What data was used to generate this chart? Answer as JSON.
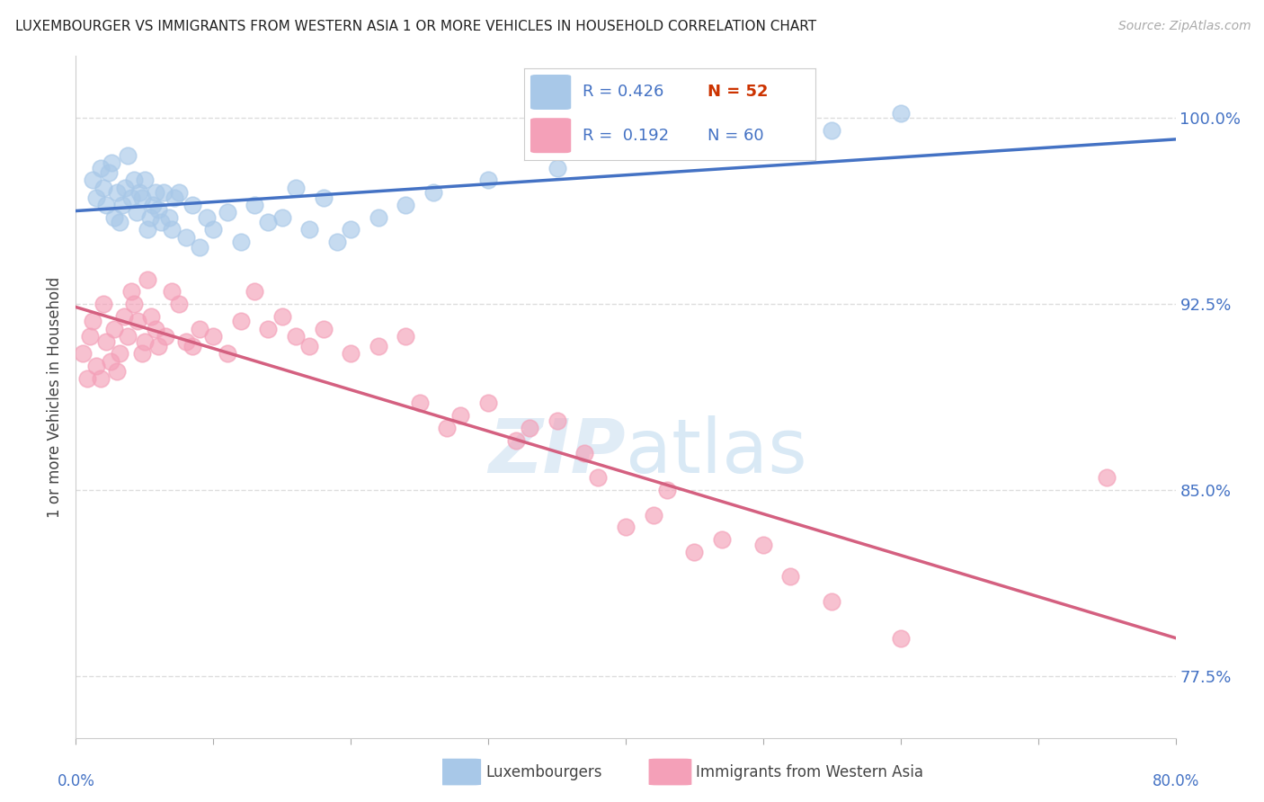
{
  "title": "LUXEMBOURGER VS IMMIGRANTS FROM WESTERN ASIA 1 OR MORE VEHICLES IN HOUSEHOLD CORRELATION CHART",
  "source": "Source: ZipAtlas.com",
  "ylabel": "1 or more Vehicles in Household",
  "yticks": [
    100.0,
    92.5,
    85.0,
    77.5
  ],
  "ytick_labels": [
    "100.0%",
    "92.5%",
    "85.0%",
    "77.5%"
  ],
  "legend_label_blue": "Luxembourgers",
  "legend_label_pink": "Immigrants from Western Asia",
  "blue_color": "#a8c8e8",
  "blue_line_color": "#4472c4",
  "pink_color": "#f4a0b8",
  "pink_line_color": "#d46080",
  "blue_r": 0.426,
  "blue_n": 52,
  "pink_r": 0.192,
  "pink_n": 60,
  "xmin": 0.0,
  "xmax": 80.0,
  "ymin": 75.0,
  "ymax": 102.5,
  "background_color": "#ffffff",
  "grid_color": "#dddddd",
  "title_color": "#222222",
  "axis_label_color": "#444444",
  "tick_color": "#4472c4",
  "source_color": "#aaaaaa",
  "blue_x": [
    1.2,
    1.5,
    1.8,
    2.0,
    2.2,
    2.4,
    2.6,
    2.8,
    3.0,
    3.2,
    3.4,
    3.6,
    3.8,
    4.0,
    4.2,
    4.4,
    4.6,
    4.8,
    5.0,
    5.2,
    5.4,
    5.6,
    5.8,
    6.0,
    6.2,
    6.4,
    6.8,
    7.0,
    7.2,
    7.5,
    8.0,
    8.5,
    9.0,
    9.5,
    10.0,
    11.0,
    12.0,
    13.0,
    14.0,
    15.0,
    16.0,
    17.0,
    18.0,
    19.0,
    20.0,
    22.0,
    24.0,
    26.0,
    30.0,
    35.0,
    55.0,
    60.0
  ],
  "blue_y": [
    97.5,
    96.8,
    98.0,
    97.2,
    96.5,
    97.8,
    98.2,
    96.0,
    97.0,
    95.8,
    96.5,
    97.2,
    98.5,
    96.8,
    97.5,
    96.2,
    97.0,
    96.8,
    97.5,
    95.5,
    96.0,
    96.5,
    97.0,
    96.3,
    95.8,
    97.0,
    96.0,
    95.5,
    96.8,
    97.0,
    95.2,
    96.5,
    94.8,
    96.0,
    95.5,
    96.2,
    95.0,
    96.5,
    95.8,
    96.0,
    97.2,
    95.5,
    96.8,
    95.0,
    95.5,
    96.0,
    96.5,
    97.0,
    97.5,
    98.0,
    99.5,
    100.2
  ],
  "pink_x": [
    0.5,
    0.8,
    1.0,
    1.2,
    1.5,
    1.8,
    2.0,
    2.2,
    2.5,
    2.8,
    3.0,
    3.2,
    3.5,
    3.8,
    4.0,
    4.2,
    4.5,
    4.8,
    5.0,
    5.2,
    5.5,
    5.8,
    6.0,
    6.5,
    7.0,
    7.5,
    8.0,
    8.5,
    9.0,
    10.0,
    11.0,
    12.0,
    13.0,
    14.0,
    15.0,
    16.0,
    17.0,
    18.0,
    20.0,
    22.0,
    24.0,
    25.0,
    27.0,
    28.0,
    30.0,
    32.0,
    33.0,
    35.0,
    37.0,
    38.0,
    40.0,
    42.0,
    43.0,
    45.0,
    47.0,
    50.0,
    52.0,
    55.0,
    60.0,
    75.0
  ],
  "pink_y": [
    90.5,
    89.5,
    91.2,
    91.8,
    90.0,
    89.5,
    92.5,
    91.0,
    90.2,
    91.5,
    89.8,
    90.5,
    92.0,
    91.2,
    93.0,
    92.5,
    91.8,
    90.5,
    91.0,
    93.5,
    92.0,
    91.5,
    90.8,
    91.2,
    93.0,
    92.5,
    91.0,
    90.8,
    91.5,
    91.2,
    90.5,
    91.8,
    93.0,
    91.5,
    92.0,
    91.2,
    90.8,
    91.5,
    90.5,
    90.8,
    91.2,
    88.5,
    87.5,
    88.0,
    88.5,
    87.0,
    87.5,
    87.8,
    86.5,
    85.5,
    83.5,
    84.0,
    85.0,
    82.5,
    83.0,
    82.8,
    81.5,
    80.5,
    79.0,
    85.5
  ]
}
